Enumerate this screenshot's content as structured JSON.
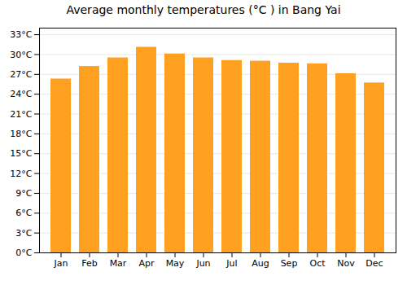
{
  "chart_data": {
    "type": "bar",
    "title": "Average monthly temperatures (°C ) in Bang Yai",
    "categories": [
      "Jan",
      "Feb",
      "Mar",
      "Apr",
      "May",
      "Jun",
      "Jul",
      "Aug",
      "Sep",
      "Oct",
      "Nov",
      "Dec"
    ],
    "values": [
      26.3,
      28.2,
      29.5,
      31.1,
      30.1,
      29.5,
      29.1,
      29.0,
      28.7,
      28.6,
      27.1,
      25.7
    ],
    "color": "#FFA020",
    "ylim": [
      0,
      34
    ],
    "yticks": [
      {
        "value": 0,
        "label": "0°C"
      },
      {
        "value": 3,
        "label": "3°C"
      },
      {
        "value": 6,
        "label": "6°C"
      },
      {
        "value": 9,
        "label": "9°C"
      },
      {
        "value": 12,
        "label": "12°C"
      },
      {
        "value": 15,
        "label": "15°C"
      },
      {
        "value": 18,
        "label": "18°C"
      },
      {
        "value": 21,
        "label": "21°C"
      },
      {
        "value": 24,
        "label": "24°C"
      },
      {
        "value": 27,
        "label": "27°C"
      },
      {
        "value": 30,
        "label": "30°C"
      },
      {
        "value": 33,
        "label": "33°C"
      }
    ],
    "grid": true
  }
}
